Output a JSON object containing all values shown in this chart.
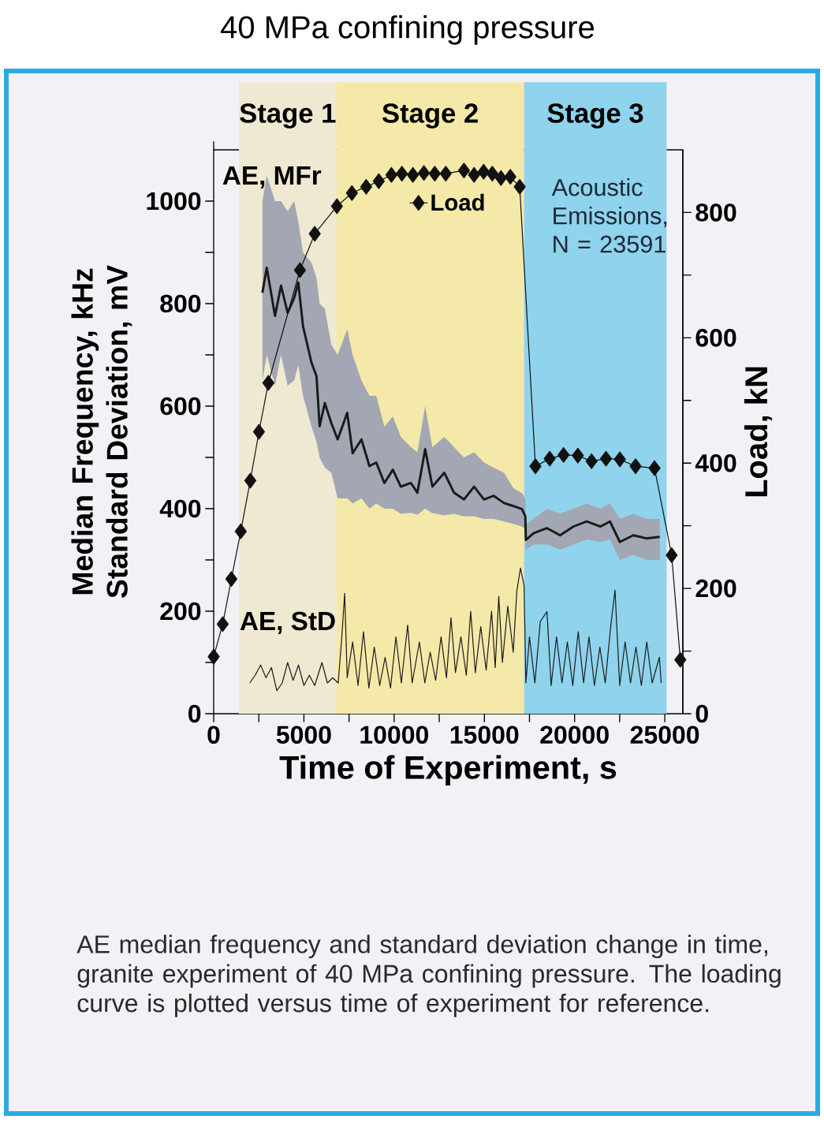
{
  "chart_data": {
    "type": "line",
    "title": "40 MPa confining pressure",
    "xlabel": "Time of Experiment, s",
    "ylabel": "Median Frequency, kHz Standard Deviation, mV",
    "y2label": "Load, kN",
    "xlim": [
      0,
      26000
    ],
    "xticks": [
      0,
      {
        "value": 2500,
        "label": null
      },
      5000,
      {
        "value": 7500,
        "label": null
      },
      10000,
      {
        "value": 12500,
        "label": null
      },
      15000,
      {
        "value": 17500,
        "label": null
      },
      20000,
      {
        "value": 22500,
        "label": null
      },
      25000
    ],
    "ylim": [
      0,
      1100
    ],
    "yticks": [
      0,
      {
        "value": 100,
        "label": null
      },
      200,
      {
        "value": 300,
        "label": null
      },
      400,
      {
        "value": 500,
        "label": null
      },
      600,
      {
        "value": 700,
        "label": null
      },
      800,
      {
        "value": 900,
        "label": null
      },
      1000
    ],
    "y2lim": [
      0,
      900
    ],
    "y2ticks": [
      0,
      {
        "value": 100,
        "label": null
      },
      200,
      {
        "value": 300,
        "label": null
      },
      400,
      {
        "value": 500,
        "label": null
      },
      600,
      {
        "value": 700,
        "label": null
      },
      800
    ],
    "legend": "top",
    "bands": [
      {
        "axis": "x",
        "from": 1400,
        "to": 6800,
        "label": "Stage 1",
        "color": "#efe9d2"
      },
      {
        "axis": "x",
        "from": 6800,
        "to": 17200,
        "label": "Stage 2",
        "color": "#f4e9a8"
      },
      {
        "axis": "x",
        "from": 17200,
        "to": 25100,
        "label": "Stage 3",
        "color": "#8fd3ec"
      }
    ],
    "annotations": [
      "AE, MFr",
      "AE, StD",
      "Acoustic Emissions, N = 23591",
      "AE median frequency and standard deviation change in time, granite experiment of 40 MPa confining pressure. The loading curve is plotted versus time of experiment for reference."
    ],
    "series": [
      {
        "color": "#1a1a1a",
        "x": [
          2700,
          2940,
          3400,
          3730,
          4100,
          4460,
          4690,
          4950,
          5420,
          5700,
          5870,
          6160,
          6520,
          6870,
          7400,
          7700,
          8190,
          8630,
          9010,
          9460,
          9930,
          10370,
          10930,
          11290,
          11720,
          12120,
          12780,
          13320,
          13870,
          14430,
          14980,
          15520,
          16090,
          16610,
          17090,
          17270,
          17300,
          17730,
          18470,
          19200,
          19930,
          20670,
          21420,
          21960,
          22510,
          23250,
          23980,
          24720
        ],
        "values": [
          821,
          870,
          776,
          835,
          782,
          811,
          841,
          756,
          685,
          658,
          561,
          606,
          567,
          535,
          587,
          508,
          535,
          483,
          490,
          450,
          476,
          443,
          450,
          431,
          516,
          443,
          470,
          431,
          418,
          443,
          418,
          425,
          411,
          405,
          399,
          385,
          339,
          352,
          362,
          348,
          365,
          375,
          365,
          375,
          335,
          348,
          342,
          345
        ],
        "upper": [
          1000,
          1050,
          1000,
          1000,
          980,
          1000,
          960,
          900,
          880,
          850,
          800,
          790,
          720,
          700,
          750,
          700,
          650,
          620,
          620,
          560,
          580,
          540,
          520,
          510,
          600,
          520,
          540,
          520,
          500,
          510,
          490,
          480,
          470,
          440,
          430,
          420,
          370,
          380,
          400,
          390,
          400,
          410,
          400,
          410,
          380,
          390,
          380,
          380
        ],
        "lower": [
          650,
          700,
          640,
          700,
          640,
          650,
          680,
          620,
          560,
          530,
          500,
          480,
          470,
          420,
          420,
          410,
          420,
          400,
          410,
          400,
          400,
          390,
          392,
          388,
          400,
          391,
          387,
          390,
          385,
          385,
          380,
          380,
          375,
          370,
          365,
          360,
          320,
          330,
          330,
          320,
          330,
          340,
          335,
          340,
          300,
          310,
          300,
          300
        ]
      },
      {
        "color": "#1a1a1a",
        "x": [
          2000,
          2300,
          2600,
          2900,
          3200,
          3500,
          3800,
          4100,
          4400,
          4700,
          5000,
          5300,
          5600,
          6000,
          6300,
          6600,
          6900,
          7100,
          7260,
          7400,
          7700,
          8000,
          8300,
          8600,
          8900,
          9200,
          9500,
          9800,
          10100,
          10400,
          10750,
          11000,
          11400,
          11700,
          12000,
          12300,
          12600,
          12900,
          13150,
          13400,
          13700,
          14000,
          14240,
          14500,
          14800,
          15100,
          15400,
          15600,
          15800,
          16000,
          16300,
          16600,
          16800,
          17000,
          17200,
          17300,
          17500,
          17800,
          18100,
          18470,
          18700,
          19000,
          19300,
          19600,
          19900,
          20200,
          20500,
          20800,
          21100,
          21400,
          21700,
          22000,
          22240,
          22500,
          22800,
          23100,
          23400,
          23700,
          24000,
          24300,
          24700,
          24800
        ],
        "values": [
          60,
          75,
          95,
          70,
          90,
          45,
          60,
          100,
          65,
          95,
          55,
          75,
          55,
          100,
          60,
          70,
          60,
          150,
          235,
          70,
          140,
          55,
          160,
          50,
          130,
          55,
          110,
          50,
          150,
          60,
          173,
          60,
          140,
          60,
          120,
          65,
          150,
          70,
          187,
          80,
          150,
          75,
          200,
          80,
          170,
          85,
          200,
          90,
          229,
          100,
          210,
          120,
          240,
          284,
          250,
          60,
          150,
          60,
          180,
          199,
          55,
          150,
          60,
          140,
          55,
          160,
          60,
          150,
          55,
          130,
          60,
          170,
          241,
          55,
          140,
          60,
          130,
          55,
          140,
          60,
          110,
          60
        ]
      },
      {
        "name": "Load",
        "axis": "y2",
        "color": "#111111",
        "marker": "diamond",
        "x": [
          0,
          500,
          980,
          1500,
          2030,
          2510,
          3030,
          4780,
          5600,
          6830,
          7660,
          8450,
          9150,
          9850,
          10430,
          11040,
          11650,
          12250,
          12860,
          13870,
          14430,
          14960,
          15440,
          15920,
          16440,
          16960,
          17830,
          18620,
          19390,
          20180,
          20940,
          21740,
          22510,
          23380,
          24430,
          25380,
          25860
        ],
        "values": [
          91,
          143,
          215,
          291,
          372,
          450,
          528,
          708,
          766,
          810,
          831,
          841,
          850,
          860,
          862,
          860,
          863,
          862,
          862,
          867,
          860,
          865,
          862,
          855,
          857,
          841,
          395,
          407,
          413,
          412,
          403,
          407,
          406,
          395,
          392,
          253,
          86
        ]
      }
    ]
  }
}
